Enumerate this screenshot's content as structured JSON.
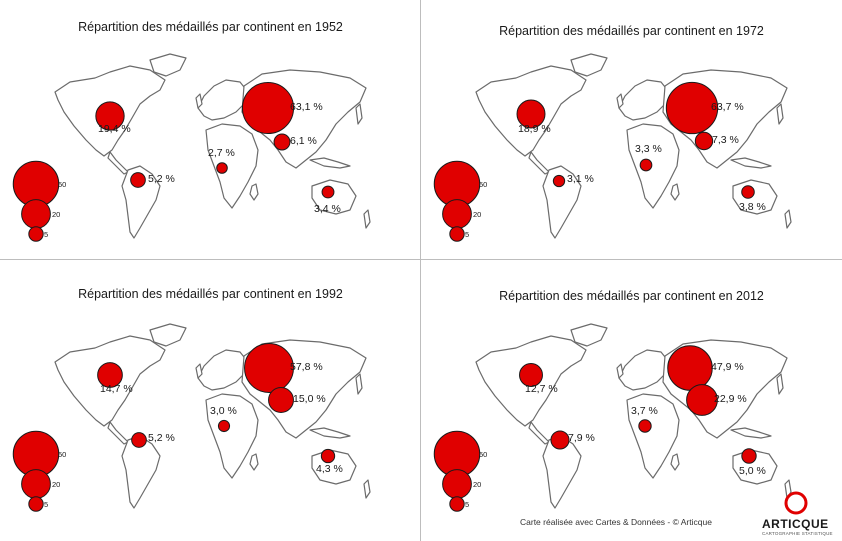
{
  "maps": [
    {
      "title": "Répartition des médaillés par continent en 1952",
      "values": {
        "north_america": "19,4 %",
        "south_america": "5,2 %",
        "europe": "63,1 %",
        "africa": "2,7 %",
        "asia": "6,1 %",
        "oceania": "3,4 %"
      },
      "numbers": {
        "north_america": 19.4,
        "south_america": 5.2,
        "europe": 63.1,
        "africa": 2.7,
        "asia": 6.1,
        "oceania": 3.4
      }
    },
    {
      "title": "Répartition des médaillés par continent en 1972",
      "values": {
        "north_america": "18,9 %",
        "south_america": "3,1 %",
        "europe": "63,7 %",
        "africa": "3,3 %",
        "asia": "7,3 %",
        "oceania": "3,8 %"
      },
      "numbers": {
        "north_america": 18.9,
        "south_america": 3.1,
        "europe": 63.7,
        "africa": 3.3,
        "asia": 7.3,
        "oceania": 3.8
      }
    },
    {
      "title": "Répartition des médaillés par continent en 1992",
      "values": {
        "north_america": "14,7 %",
        "south_america": "5,2 %",
        "europe": "57,8 %",
        "africa": "3,0 %",
        "asia": "15,0 %",
        "oceania": "4,3 %"
      },
      "numbers": {
        "north_america": 14.7,
        "south_america": 5.2,
        "europe": 57.8,
        "africa": 3.0,
        "asia": 15.0,
        "oceania": 4.3
      }
    },
    {
      "title": "Répartition des médaillés par continent en 2012",
      "values": {
        "north_america": "12,7 %",
        "south_america": "7,9 %",
        "europe": "47,9 %",
        "africa": "3,7 %",
        "asia": "22,9 %",
        "oceania": "5,0 %"
      },
      "numbers": {
        "north_america": 12.7,
        "south_america": 7.9,
        "europe": 47.9,
        "africa": 3.7,
        "asia": 22.9,
        "oceania": 5.0
      }
    }
  ],
  "legend": {
    "values": [
      50,
      20,
      5
    ],
    "labels": [
      "50",
      "20",
      "5"
    ]
  },
  "colors": {
    "bubble": "#e00000",
    "bubble_stroke": "#1a1a1a",
    "land": "#ffffff",
    "land_stroke": "#6b6b6b"
  },
  "credit": "Carte réalisée avec Cartes & Données - © Articque",
  "logo": {
    "brand": "ARTICQUE",
    "tagline": "CARTOGRAPHIE STATISTIQUE"
  }
}
